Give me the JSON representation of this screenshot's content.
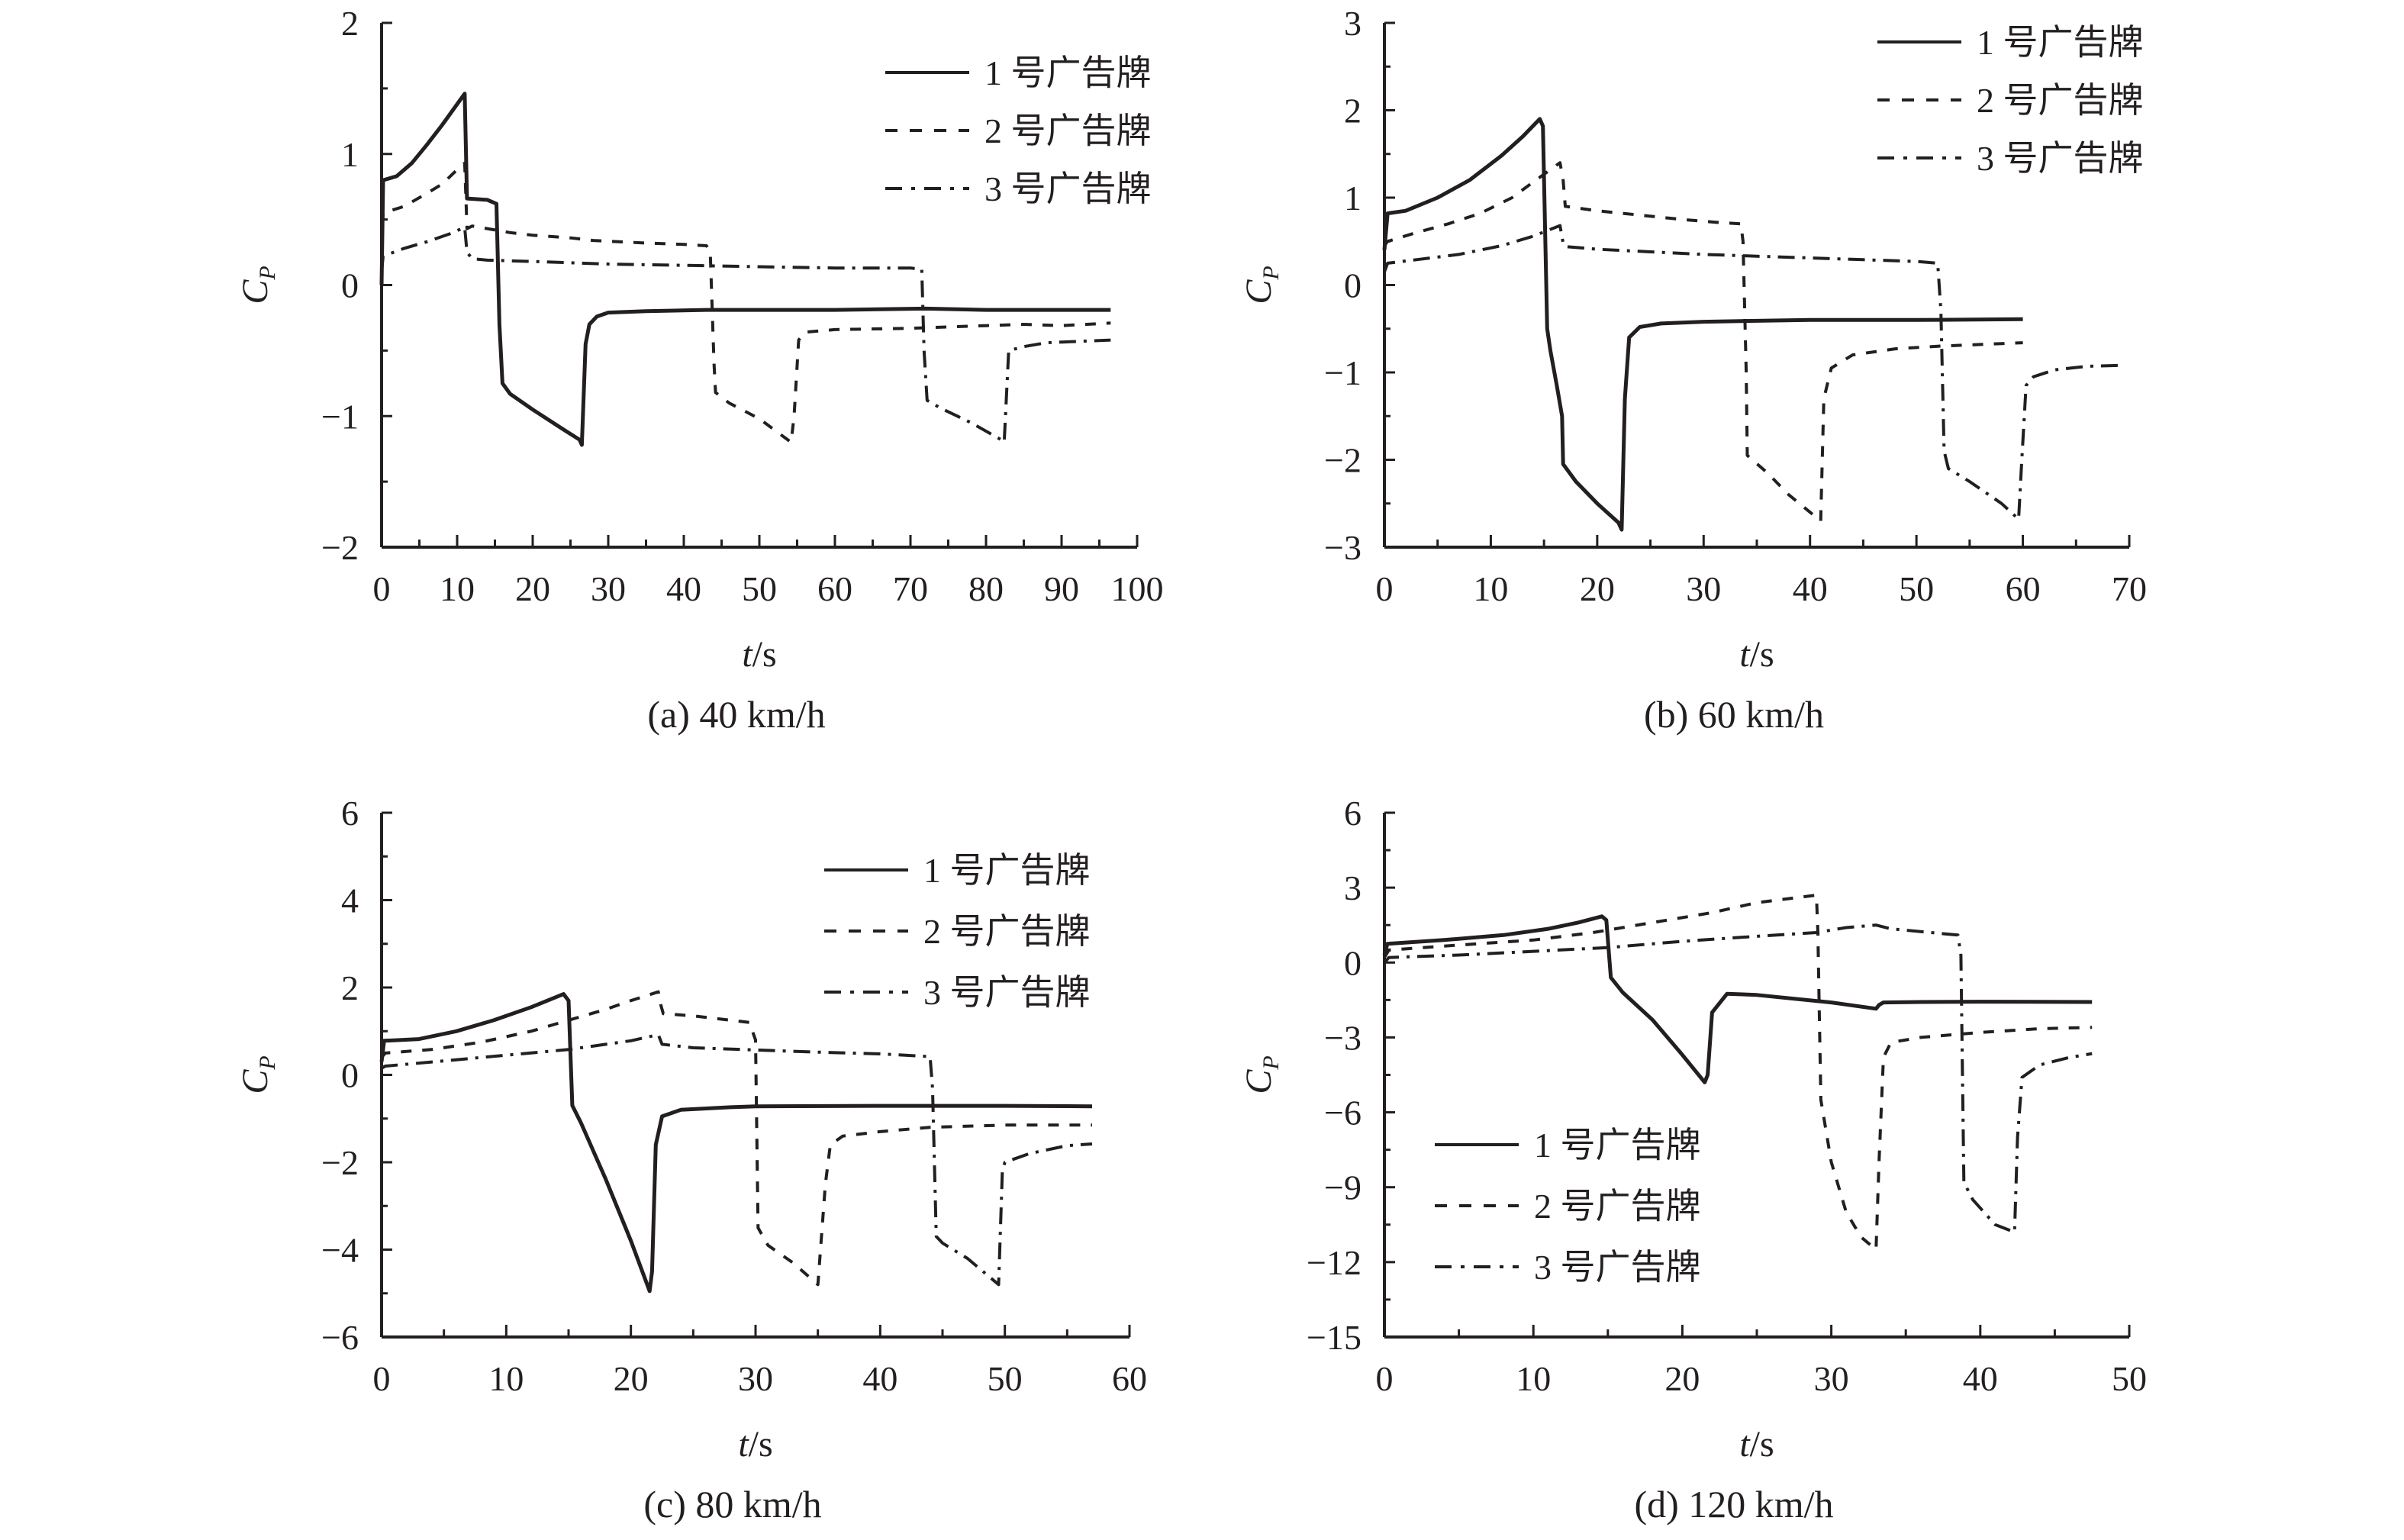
{
  "figure": {
    "legend_labels": [
      "1 号广告牌",
      "2 号广告牌",
      "3 号广告牌"
    ],
    "colors": {
      "ink": "#231f20"
    }
  },
  "chart_data": [
    {
      "id": "a",
      "type": "line",
      "caption": "(a) 40 km/h",
      "xlabel": "t/s",
      "ylabel": "C_P",
      "xlim": [
        0,
        100
      ],
      "ylim": [
        -2,
        2
      ],
      "xticks": [
        0,
        10,
        20,
        30,
        40,
        50,
        60,
        70,
        80,
        90,
        100
      ],
      "yticks": [
        -2,
        -1,
        0,
        1,
        2
      ],
      "yminor": [
        -1.5,
        -0.5,
        0.5,
        1.5
      ],
      "legend_position": "top-right",
      "series": [
        {
          "name": "1 号广告牌",
          "style": "solid",
          "x": [
            0,
            0.2,
            2,
            4,
            6,
            8,
            10,
            11,
            11.3,
            14,
            15.2,
            15.6,
            16,
            17,
            20,
            24,
            26.2,
            26.5,
            27,
            27.5,
            28.5,
            30,
            35,
            43,
            60,
            72,
            80,
            96.5
          ],
          "y": [
            0,
            0.8,
            0.83,
            0.93,
            1.07,
            1.22,
            1.38,
            1.46,
            0.66,
            0.65,
            0.62,
            -0.3,
            -0.75,
            -0.83,
            -0.95,
            -1.1,
            -1.18,
            -1.22,
            -0.45,
            -0.3,
            -0.24,
            -0.21,
            -0.2,
            -0.19,
            -0.19,
            -0.18,
            -0.19,
            -0.19
          ]
        },
        {
          "name": "2 号广告牌",
          "style": "dashed",
          "x": [
            0,
            0.2,
            3,
            6,
            8,
            10,
            11,
            11.3,
            12,
            14,
            17,
            20,
            25,
            28,
            35,
            40,
            43,
            43.5,
            44,
            44.2,
            46,
            50,
            54.2,
            54.6,
            55.2,
            56,
            60,
            70,
            80,
            85,
            90,
            96.5
          ],
          "y": [
            0.3,
            0.55,
            0.6,
            0.7,
            0.77,
            0.88,
            0.93,
            0.43,
            0.45,
            0.43,
            0.4,
            0.38,
            0.36,
            0.34,
            0.32,
            0.31,
            0.3,
            0.26,
            -0.6,
            -0.82,
            -0.9,
            -1.02,
            -1.2,
            -1.0,
            -0.42,
            -0.36,
            -0.34,
            -0.33,
            -0.31,
            -0.3,
            -0.31,
            -0.29
          ]
        },
        {
          "name": "3 号广告牌",
          "style": "dashdot",
          "x": [
            0,
            0.2,
            3,
            6,
            9,
            11,
            11.3,
            12,
            14,
            20,
            30,
            40,
            50,
            60,
            70,
            71.5,
            71.8,
            72.2,
            74,
            78,
            82,
            82.4,
            83,
            85,
            88,
            92,
            96.5
          ],
          "y": [
            0.1,
            0.22,
            0.28,
            0.33,
            0.39,
            0.44,
            0.25,
            0.2,
            0.19,
            0.18,
            0.16,
            0.15,
            0.14,
            0.13,
            0.13,
            0.12,
            -0.5,
            -0.88,
            -0.94,
            -1.05,
            -1.18,
            -1.2,
            -0.5,
            -0.47,
            -0.44,
            -0.43,
            -0.42
          ]
        }
      ]
    },
    {
      "id": "b",
      "type": "line",
      "caption": "(b) 60 km/h",
      "xlabel": "t/s",
      "ylabel": "C_P",
      "xlim": [
        0,
        70
      ],
      "ylim": [
        -3,
        3
      ],
      "xticks": [
        0,
        10,
        20,
        30,
        40,
        50,
        60,
        70
      ],
      "yticks": [
        -3,
        -2,
        -1,
        0,
        1,
        2,
        3
      ],
      "yminor": [
        -2.5,
        -1.5,
        -0.5,
        0.5,
        1.5,
        2.5
      ],
      "legend_position": "top-right",
      "series": [
        {
          "name": "1 号广告牌",
          "style": "solid",
          "x": [
            0,
            0.3,
            2,
            5,
            8,
            11,
            13,
            14.6,
            14.9,
            15.3,
            15.6,
            16.2,
            16.7,
            16.8,
            18,
            20,
            22,
            22.3,
            22.6,
            23,
            24,
            26,
            30,
            35,
            40,
            50,
            60
          ],
          "y": [
            0.4,
            0.82,
            0.85,
            1.0,
            1.2,
            1.48,
            1.7,
            1.9,
            1.82,
            -0.5,
            -0.75,
            -1.15,
            -1.5,
            -2.05,
            -2.25,
            -2.5,
            -2.72,
            -2.8,
            -1.3,
            -0.6,
            -0.48,
            -0.44,
            -0.42,
            -0.41,
            -0.4,
            -0.4,
            -0.39
          ]
        },
        {
          "name": "2 号广告牌",
          "style": "dashed",
          "x": [
            0,
            0.3,
            3,
            6,
            9,
            12,
            14,
            16.5,
            16.8,
            17,
            20,
            24,
            28,
            31,
            33.5,
            33.7,
            34,
            34.1,
            36,
            38,
            40.5,
            41,
            41.3,
            42,
            44,
            48,
            52,
            56,
            60
          ],
          "y": [
            0.45,
            0.5,
            0.6,
            0.7,
            0.82,
            1.0,
            1.18,
            1.4,
            1.2,
            0.9,
            0.85,
            0.8,
            0.75,
            0.72,
            0.7,
            0.5,
            -1.0,
            -1.95,
            -2.15,
            -2.4,
            -2.65,
            -2.7,
            -1.3,
            -0.95,
            -0.8,
            -0.73,
            -0.7,
            -0.68,
            -0.66
          ]
        },
        {
          "name": "3 号广告牌",
          "style": "dashdot",
          "x": [
            0,
            0.3,
            3,
            7,
            11,
            14,
            16.5,
            16.8,
            17,
            20,
            25,
            30,
            35,
            40,
            45,
            50,
            52,
            52.3,
            52.6,
            53,
            55,
            58,
            59.6,
            59.9,
            60.3,
            61,
            63,
            66,
            69
          ],
          "y": [
            0.15,
            0.25,
            0.29,
            0.35,
            0.45,
            0.56,
            0.68,
            0.48,
            0.44,
            0.41,
            0.38,
            0.35,
            0.33,
            0.31,
            0.29,
            0.27,
            0.25,
            -0.3,
            -1.9,
            -2.1,
            -2.25,
            -2.5,
            -2.68,
            -2.0,
            -1.15,
            -1.05,
            -0.97,
            -0.93,
            -0.92
          ]
        }
      ]
    },
    {
      "id": "c",
      "type": "line",
      "caption": "(c) 80 km/h",
      "xlabel": "t/s",
      "ylabel": "C_P",
      "xlim": [
        0,
        60
      ],
      "ylim": [
        -6,
        6
      ],
      "xticks": [
        0,
        10,
        20,
        30,
        40,
        50,
        60
      ],
      "yticks": [
        -6,
        -4,
        -2,
        0,
        2,
        4,
        6
      ],
      "yminor": [
        -5,
        -3,
        -1,
        1,
        3,
        5
      ],
      "legend_position": "top-right",
      "series": [
        {
          "name": "1 号广告牌",
          "style": "solid",
          "x": [
            0,
            0.2,
            3,
            6,
            9,
            12,
            14.6,
            15,
            15.3,
            16,
            18,
            20,
            21.5,
            21.7,
            22,
            22.5,
            24,
            28,
            30,
            40,
            50,
            57
          ],
          "y": [
            0.3,
            0.78,
            0.82,
            1.0,
            1.25,
            1.55,
            1.85,
            1.7,
            -0.7,
            -1.1,
            -2.4,
            -3.8,
            -4.95,
            -4.5,
            -1.6,
            -0.95,
            -0.8,
            -0.74,
            -0.72,
            -0.71,
            -0.71,
            -0.72
          ]
        },
        {
          "name": "2 号广告牌",
          "style": "dashed",
          "x": [
            0,
            0.3,
            4,
            8,
            12,
            15,
            18,
            20,
            22.2,
            22.4,
            22.6,
            25,
            29.5,
            30,
            30.2,
            31,
            33,
            35,
            35.6,
            36,
            37,
            40,
            44,
            50,
            57
          ],
          "y": [
            0.4,
            0.5,
            0.58,
            0.75,
            1.0,
            1.25,
            1.5,
            1.7,
            1.9,
            1.6,
            1.4,
            1.35,
            1.2,
            0.8,
            -3.5,
            -3.9,
            -4.3,
            -4.8,
            -2.5,
            -1.6,
            -1.4,
            -1.3,
            -1.2,
            -1.15,
            -1.15
          ]
        },
        {
          "name": "3 号广告牌",
          "style": "dashdot",
          "x": [
            0,
            0.3,
            5,
            10,
            15,
            20,
            22.2,
            22.5,
            25,
            30,
            35,
            40,
            44,
            44.2,
            44.5,
            45,
            47,
            49.5,
            49.8,
            50,
            52,
            55,
            57
          ],
          "y": [
            0.15,
            0.2,
            0.32,
            0.45,
            0.58,
            0.78,
            0.92,
            0.7,
            0.62,
            0.57,
            0.52,
            0.48,
            0.42,
            -0.3,
            -3.7,
            -3.85,
            -4.2,
            -4.8,
            -2.2,
            -2.0,
            -1.8,
            -1.62,
            -1.58
          ]
        }
      ]
    },
    {
      "id": "d",
      "type": "line",
      "caption": "(d) 120 km/h",
      "xlabel": "t/s",
      "ylabel": "C_P",
      "xlim": [
        0,
        50
      ],
      "ylim": [
        -15,
        6
      ],
      "xticks": [
        0,
        10,
        20,
        30,
        40,
        50
      ],
      "yticks": [
        -15,
        -12,
        -9,
        -6,
        -3,
        0,
        3,
        6
      ],
      "yminor": [
        -13.5,
        -10.5,
        -7.5,
        -4.5,
        -1.5,
        1.5,
        4.5
      ],
      "legend_position": "bottom-left",
      "series": [
        {
          "name": "1 号广告牌",
          "style": "solid",
          "x": [
            0,
            0.2,
            4,
            8,
            11,
            13,
            14.6,
            14.9,
            15.2,
            16,
            18,
            20,
            21.5,
            21.7,
            22,
            23,
            25,
            30,
            33,
            33.2,
            33.5,
            36,
            40,
            47.5
          ],
          "y": [
            0.3,
            0.75,
            0.9,
            1.1,
            1.35,
            1.6,
            1.85,
            1.7,
            -0.6,
            -1.2,
            -2.3,
            -3.7,
            -4.8,
            -4.5,
            -2.0,
            -1.25,
            -1.3,
            -1.6,
            -1.85,
            -1.7,
            -1.6,
            -1.58,
            -1.57,
            -1.58
          ]
        },
        {
          "name": "2 号广告牌",
          "style": "dashed",
          "x": [
            0,
            0.3,
            5,
            10,
            14,
            18,
            22,
            25,
            29,
            29.1,
            29.3,
            30,
            31,
            32,
            33,
            33.2,
            33.5,
            34,
            36,
            40,
            44,
            47.5
          ],
          "y": [
            0.2,
            0.5,
            0.7,
            0.9,
            1.2,
            1.6,
            2.0,
            2.4,
            2.7,
            1.2,
            -5.5,
            -8.0,
            -10.0,
            -11.0,
            -11.5,
            -8.0,
            -3.8,
            -3.2,
            -3.0,
            -2.8,
            -2.65,
            -2.6
          ]
        },
        {
          "name": "3 号广告牌",
          "style": "dashdot",
          "x": [
            0,
            0.3,
            5,
            10,
            15,
            20,
            25,
            29,
            31,
            33,
            34,
            38.5,
            38.7,
            38.9,
            39.5,
            41,
            42.3,
            42.5,
            42.8,
            44,
            46,
            47.5
          ],
          "y": [
            0.0,
            0.2,
            0.3,
            0.45,
            0.6,
            0.85,
            1.05,
            1.2,
            1.4,
            1.5,
            1.35,
            1.1,
            0.3,
            -8.8,
            -9.5,
            -10.5,
            -10.8,
            -7.0,
            -4.6,
            -4.1,
            -3.8,
            -3.65
          ]
        }
      ]
    }
  ]
}
